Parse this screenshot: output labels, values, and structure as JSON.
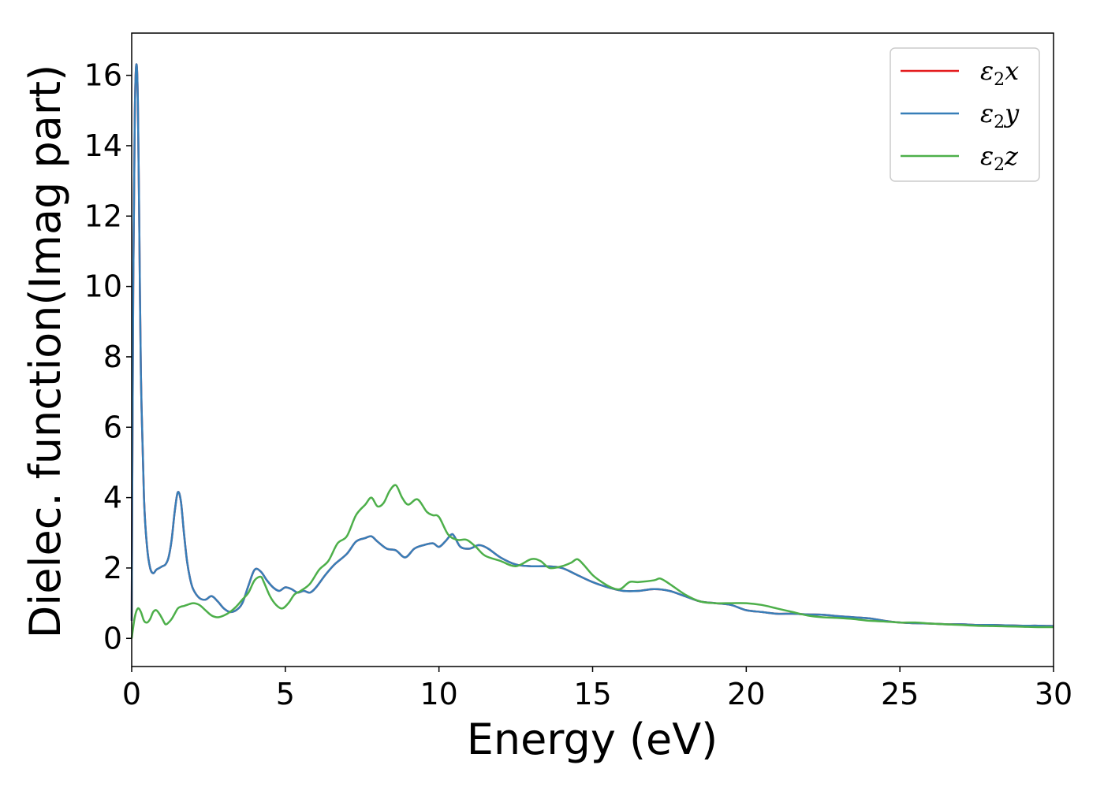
{
  "chart_data": {
    "type": "line",
    "title": "",
    "xlabel": "Energy (eV)",
    "ylabel": "Dielec. function(Imag part)",
    "xlim": [
      0,
      30
    ],
    "ylim": [
      -0.8,
      17.2
    ],
    "xticks": [
      0,
      5,
      10,
      15,
      20,
      25,
      30
    ],
    "yticks": [
      0,
      2,
      4,
      6,
      8,
      10,
      12,
      14,
      16
    ],
    "grid": false,
    "legend_position": "top-right",
    "series": [
      {
        "name": "ε2x",
        "legend_base": "ε",
        "legend_sub": "2",
        "legend_suffix": "x",
        "color": "#e41a1c",
        "x": [
          0,
          0.05,
          0.1,
          0.15,
          0.2,
          0.25,
          0.3,
          0.4,
          0.5,
          0.6,
          0.7,
          0.8,
          0.9,
          1.0,
          1.1,
          1.2,
          1.3,
          1.4,
          1.5,
          1.6,
          1.7,
          1.8,
          1.9,
          2.0,
          2.2,
          2.4,
          2.6,
          2.8,
          3.0,
          3.2,
          3.4,
          3.6,
          3.8,
          4.0,
          4.2,
          4.4,
          4.6,
          4.8,
          5.0,
          5.2,
          5.4,
          5.6,
          5.8,
          6.0,
          6.3,
          6.6,
          7.0,
          7.3,
          7.6,
          7.8,
          8.0,
          8.3,
          8.6,
          8.9,
          9.2,
          9.5,
          9.8,
          10.0,
          10.2,
          10.4,
          10.5,
          10.7,
          11.0,
          11.3,
          11.6,
          12.0,
          12.5,
          13.0,
          13.5,
          14.0,
          14.5,
          15.0,
          15.5,
          16.0,
          16.5,
          17.0,
          17.5,
          18.0,
          18.5,
          19.0,
          19.5,
          20.0,
          20.5,
          21.0,
          21.5,
          22.0,
          22.5,
          23.0,
          23.5,
          24.0,
          24.5,
          25.0,
          25.5,
          26.0,
          26.5,
          27.0,
          27.5,
          28.0,
          28.5,
          29.0,
          29.5,
          30.0
        ],
        "y": [
          0.5,
          10.0,
          14.8,
          16.3,
          15.3,
          11.5,
          7.5,
          4.0,
          2.6,
          2.0,
          1.85,
          1.95,
          2.0,
          2.05,
          2.1,
          2.3,
          2.8,
          3.6,
          4.15,
          3.9,
          3.0,
          2.2,
          1.7,
          1.4,
          1.15,
          1.1,
          1.2,
          1.05,
          0.85,
          0.75,
          0.8,
          1.0,
          1.5,
          1.95,
          1.9,
          1.65,
          1.45,
          1.35,
          1.45,
          1.4,
          1.3,
          1.35,
          1.3,
          1.45,
          1.8,
          2.1,
          2.4,
          2.75,
          2.85,
          2.9,
          2.75,
          2.55,
          2.5,
          2.3,
          2.55,
          2.65,
          2.7,
          2.6,
          2.75,
          2.95,
          2.9,
          2.6,
          2.55,
          2.65,
          2.55,
          2.3,
          2.1,
          2.05,
          2.05,
          2.0,
          1.8,
          1.6,
          1.45,
          1.35,
          1.35,
          1.4,
          1.35,
          1.2,
          1.05,
          1.0,
          0.95,
          0.8,
          0.75,
          0.7,
          0.7,
          0.68,
          0.67,
          0.63,
          0.6,
          0.57,
          0.5,
          0.45,
          0.43,
          0.42,
          0.4,
          0.4,
          0.38,
          0.38,
          0.37,
          0.36,
          0.36,
          0.35
        ]
      },
      {
        "name": "ε2y",
        "legend_base": "ε",
        "legend_sub": "2",
        "legend_suffix": "y",
        "color": "#377eb8",
        "x": [
          0,
          0.05,
          0.1,
          0.15,
          0.2,
          0.25,
          0.3,
          0.4,
          0.5,
          0.6,
          0.7,
          0.8,
          0.9,
          1.0,
          1.1,
          1.2,
          1.3,
          1.4,
          1.5,
          1.6,
          1.7,
          1.8,
          1.9,
          2.0,
          2.2,
          2.4,
          2.6,
          2.8,
          3.0,
          3.2,
          3.4,
          3.6,
          3.8,
          4.0,
          4.2,
          4.4,
          4.6,
          4.8,
          5.0,
          5.2,
          5.4,
          5.6,
          5.8,
          6.0,
          6.3,
          6.6,
          7.0,
          7.3,
          7.6,
          7.8,
          8.0,
          8.3,
          8.6,
          8.9,
          9.2,
          9.5,
          9.8,
          10.0,
          10.2,
          10.4,
          10.5,
          10.7,
          11.0,
          11.3,
          11.6,
          12.0,
          12.5,
          13.0,
          13.5,
          14.0,
          14.5,
          15.0,
          15.5,
          16.0,
          16.5,
          17.0,
          17.5,
          18.0,
          18.5,
          19.0,
          19.5,
          20.0,
          20.5,
          21.0,
          21.5,
          22.0,
          22.5,
          23.0,
          23.5,
          24.0,
          24.5,
          25.0,
          25.5,
          26.0,
          26.5,
          27.0,
          27.5,
          28.0,
          28.5,
          29.0,
          29.5,
          30.0
        ],
        "y": [
          0.5,
          10.0,
          14.8,
          16.3,
          15.3,
          11.5,
          7.5,
          4.0,
          2.6,
          2.0,
          1.85,
          1.95,
          2.0,
          2.05,
          2.1,
          2.3,
          2.8,
          3.6,
          4.15,
          3.9,
          3.0,
          2.2,
          1.7,
          1.4,
          1.15,
          1.1,
          1.2,
          1.05,
          0.85,
          0.75,
          0.8,
          1.0,
          1.5,
          1.95,
          1.9,
          1.65,
          1.45,
          1.35,
          1.45,
          1.4,
          1.3,
          1.35,
          1.3,
          1.45,
          1.8,
          2.1,
          2.4,
          2.75,
          2.85,
          2.9,
          2.75,
          2.55,
          2.5,
          2.3,
          2.55,
          2.65,
          2.7,
          2.6,
          2.75,
          2.95,
          2.9,
          2.6,
          2.55,
          2.65,
          2.55,
          2.3,
          2.1,
          2.05,
          2.05,
          2.0,
          1.8,
          1.6,
          1.45,
          1.35,
          1.35,
          1.4,
          1.35,
          1.2,
          1.05,
          1.0,
          0.95,
          0.8,
          0.75,
          0.7,
          0.7,
          0.68,
          0.67,
          0.63,
          0.6,
          0.57,
          0.5,
          0.45,
          0.43,
          0.42,
          0.4,
          0.4,
          0.38,
          0.38,
          0.37,
          0.36,
          0.36,
          0.35
        ]
      },
      {
        "name": "ε2z",
        "legend_base": "ε",
        "legend_sub": "2",
        "legend_suffix": "z",
        "color": "#4daf4a",
        "x": [
          0,
          0.1,
          0.2,
          0.3,
          0.4,
          0.5,
          0.6,
          0.7,
          0.8,
          0.9,
          1.0,
          1.1,
          1.2,
          1.3,
          1.4,
          1.5,
          1.6,
          1.7,
          1.8,
          2.0,
          2.2,
          2.4,
          2.6,
          2.8,
          3.0,
          3.2,
          3.4,
          3.6,
          3.8,
          4.0,
          4.2,
          4.3,
          4.5,
          4.7,
          4.9,
          5.1,
          5.3,
          5.5,
          5.8,
          6.1,
          6.4,
          6.7,
          7.0,
          7.3,
          7.6,
          7.8,
          8.0,
          8.2,
          8.4,
          8.6,
          8.8,
          9.0,
          9.3,
          9.6,
          9.8,
          10.0,
          10.3,
          10.6,
          10.9,
          11.2,
          11.5,
          12.0,
          12.5,
          13.0,
          13.3,
          13.6,
          14.0,
          14.3,
          14.5,
          14.7,
          15.0,
          15.3,
          15.6,
          15.9,
          16.2,
          16.5,
          17.0,
          17.2,
          17.5,
          18.0,
          18.5,
          19.0,
          19.5,
          20.0,
          20.5,
          21.0,
          21.5,
          22.0,
          22.5,
          23.0,
          23.5,
          24.0,
          24.5,
          25.0,
          25.5,
          26.0,
          26.5,
          27.0,
          27.5,
          28.0,
          28.5,
          29.0,
          29.5,
          30.0
        ],
        "y": [
          0.0,
          0.6,
          0.85,
          0.75,
          0.5,
          0.45,
          0.55,
          0.75,
          0.8,
          0.7,
          0.55,
          0.4,
          0.45,
          0.55,
          0.7,
          0.85,
          0.9,
          0.92,
          0.95,
          1.0,
          0.95,
          0.8,
          0.65,
          0.6,
          0.65,
          0.75,
          0.9,
          1.1,
          1.3,
          1.65,
          1.75,
          1.6,
          1.2,
          0.95,
          0.85,
          1.0,
          1.25,
          1.35,
          1.55,
          1.95,
          2.2,
          2.7,
          2.9,
          3.5,
          3.8,
          4.0,
          3.75,
          3.85,
          4.2,
          4.35,
          4.0,
          3.8,
          3.95,
          3.6,
          3.5,
          3.45,
          2.95,
          2.8,
          2.8,
          2.6,
          2.35,
          2.2,
          2.05,
          2.25,
          2.2,
          2.0,
          2.05,
          2.15,
          2.25,
          2.1,
          1.8,
          1.6,
          1.45,
          1.4,
          1.6,
          1.6,
          1.65,
          1.7,
          1.55,
          1.25,
          1.05,
          1.0,
          1.0,
          1.0,
          0.95,
          0.85,
          0.75,
          0.65,
          0.6,
          0.58,
          0.55,
          0.5,
          0.48,
          0.45,
          0.45,
          0.42,
          0.4,
          0.38,
          0.36,
          0.35,
          0.34,
          0.33,
          0.32,
          0.32
        ]
      }
    ]
  }
}
